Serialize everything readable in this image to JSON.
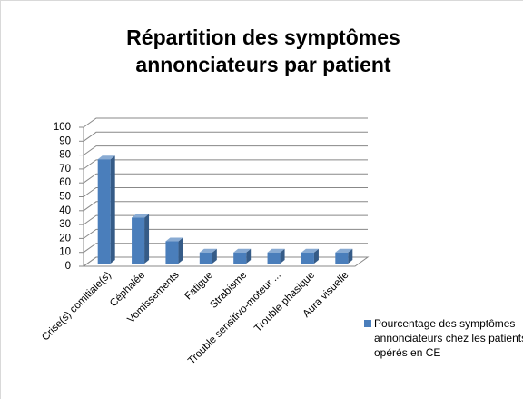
{
  "chart_data": {
    "type": "bar3d",
    "title": "Répartition des symptômes annonciateurs par patient",
    "categories": [
      "Crise(s) comitiale(s)",
      "Céphalée",
      "Vomissements",
      "Fatigue",
      "Strabisme",
      "Trouble sensitivo-moteur ...",
      "Trouble phasique",
      "Aura visuelle"
    ],
    "series": [
      {
        "name": "Pourcentage des symptômes annonciateurs chez les patients opérés en CE",
        "color": "#4a7ebb",
        "values": [
          75,
          33,
          16,
          8,
          8,
          8,
          8,
          8
        ]
      }
    ],
    "ylim": [
      0,
      100
    ],
    "yticks": [
      0,
      10,
      20,
      30,
      40,
      50,
      60,
      70,
      80,
      90,
      100
    ],
    "grid": true,
    "legend": "right"
  }
}
